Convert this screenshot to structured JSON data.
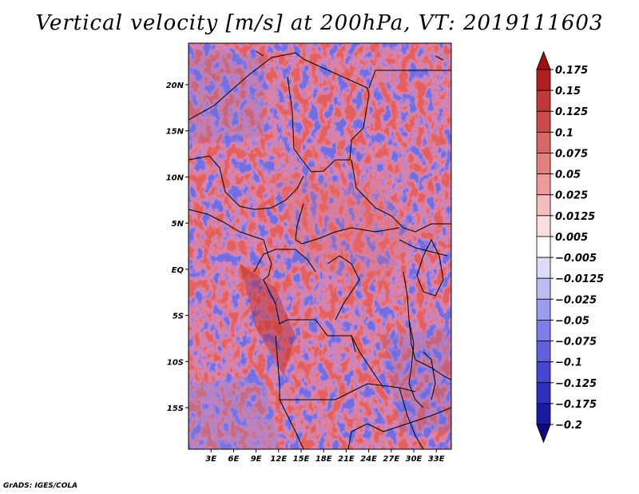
{
  "title": "Vertical velocity [m/s] at 200hPa, VT: 2019111603",
  "credit": "GrADS: IGES/COLA",
  "map": {
    "variable": "Vertical velocity",
    "units": "m/s",
    "level": "200hPa",
    "valid_time": "2019111603",
    "lat_range": [
      -19.5,
      24.5
    ],
    "lon_range": [
      0,
      35
    ],
    "lat_ticks": [
      {
        "value": 20,
        "label": "20N"
      },
      {
        "value": 15,
        "label": "15N"
      },
      {
        "value": 10,
        "label": "10N"
      },
      {
        "value": 5,
        "label": "5N"
      },
      {
        "value": 0,
        "label": "EQ"
      },
      {
        "value": -5,
        "label": "5S"
      },
      {
        "value": -10,
        "label": "10S"
      },
      {
        "value": -15,
        "label": "15S"
      }
    ],
    "lon_ticks": [
      {
        "value": 3,
        "label": "3E"
      },
      {
        "value": 6,
        "label": "6E"
      },
      {
        "value": 9,
        "label": "9E"
      },
      {
        "value": 12,
        "label": "12E"
      },
      {
        "value": 15,
        "label": "15E"
      },
      {
        "value": 18,
        "label": "18E"
      },
      {
        "value": 21,
        "label": "21E"
      },
      {
        "value": 24,
        "label": "24E"
      },
      {
        "value": 27,
        "label": "27E"
      },
      {
        "value": 30,
        "label": "30E"
      },
      {
        "value": 33,
        "label": "33E"
      }
    ]
  },
  "colorbar": {
    "levels": [
      "0.175",
      "0.15",
      "0.125",
      "0.1",
      "0.075",
      "0.05",
      "0.025",
      "0.0125",
      "0.005",
      "-0.005",
      "-0.0125",
      "-0.025",
      "-0.05",
      "-0.075",
      "-0.1",
      "-0.125",
      "-0.175",
      "-0.2"
    ],
    "colors": [
      "#a01010",
      "#b02020",
      "#c03838",
      "#cc4a4a",
      "#d86666",
      "#e28080",
      "#ec9a9a",
      "#f4bcbc",
      "#fadede",
      "#ffffff",
      "#dcdcfa",
      "#bcbcf2",
      "#9c9cee",
      "#7e7ee8",
      "#6060de",
      "#4646d0",
      "#3030bc",
      "#1a1aa0",
      "#0c0c80"
    ]
  }
}
